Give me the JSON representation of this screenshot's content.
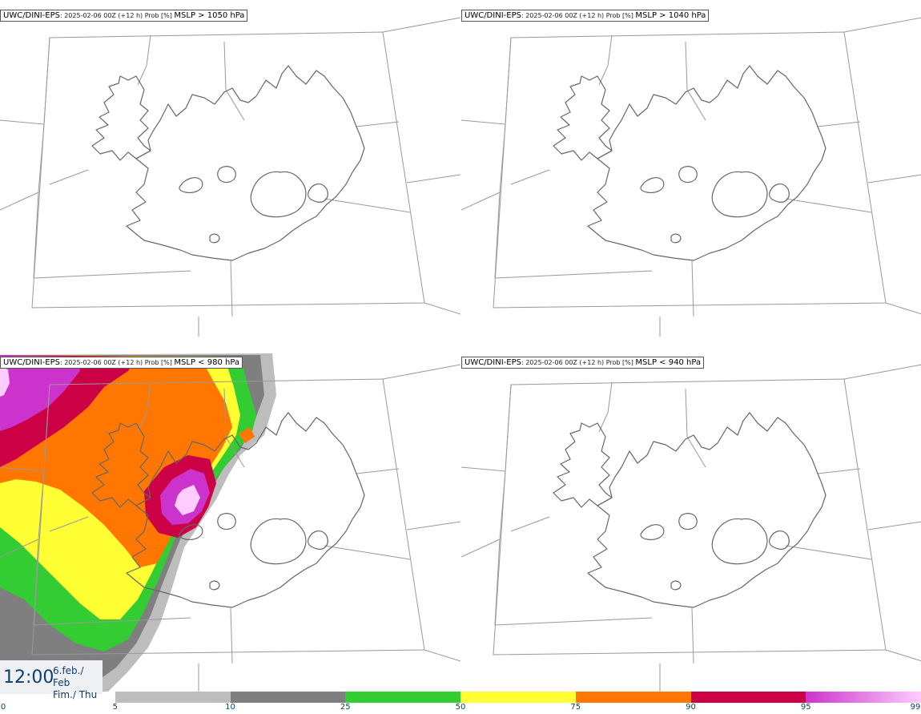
{
  "panels": [
    {
      "model": "UWC/DINI-EPS",
      "meta": ": 2025-02-06 00Z (+12 h) Prob [%] ",
      "field": "MSLP > 1050 hPa"
    },
    {
      "model": "UWC/DINI-EPS",
      "meta": ": 2025-02-06 00Z (+12 h) Prob [%] ",
      "field": "MSLP > 1040 hPa"
    },
    {
      "model": "UWC/DINI-EPS",
      "meta": ": 2025-02-06 00Z (+12 h) Prob [%] ",
      "field": "MSLP < 980 hPa"
    },
    {
      "model": "UWC/DINI-EPS",
      "meta": ": 2025-02-06 00Z (+12 h) Prob [%] ",
      "field": "MSLP < 940 hPa"
    }
  ],
  "valid": {
    "time": "12:00",
    "date_line1": "6.feb./ Feb",
    "date_line2": "Fim./ Thu"
  },
  "colorbar": {
    "ticks": [
      "0",
      "5",
      "10",
      "25",
      "50",
      "75",
      "90",
      "95",
      "99"
    ],
    "colors": [
      "#ffffff",
      "#bdbdbd",
      "#7f7f7f",
      "#33cc33",
      "#ffff33",
      "#ff7700",
      "#cc0044",
      "#cc33cc",
      "#ffccff"
    ]
  },
  "probability_field": {
    "panel": 3,
    "levels": [
      5,
      10,
      25,
      50,
      75,
      90,
      95,
      99
    ]
  }
}
